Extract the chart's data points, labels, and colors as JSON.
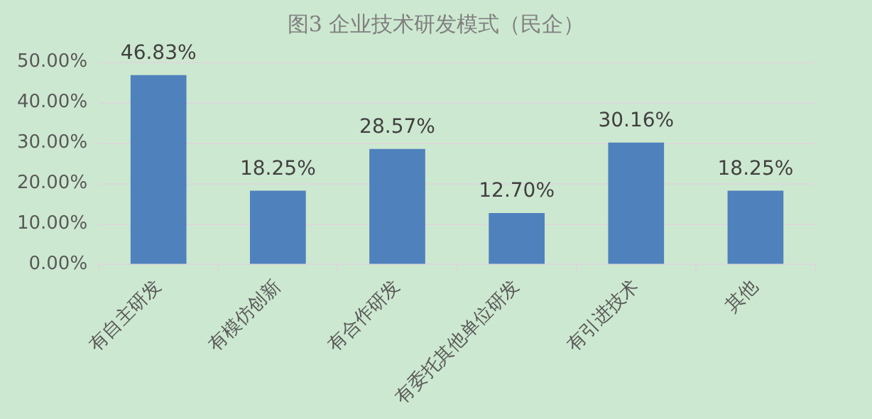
{
  "chart_data": {
    "type": "bar",
    "title": "图3 企业技术研发模式（民企）",
    "categories": [
      "有自主研发",
      "有模仿创新",
      "有合作研发",
      "有委托其他单位研发",
      "有引进技术",
      "其他"
    ],
    "values": [
      46.83,
      18.25,
      28.57,
      12.7,
      30.16,
      18.25
    ],
    "value_labels": [
      "46.83%",
      "18.25%",
      "28.57%",
      "12.70%",
      "30.16%",
      "18.25%"
    ],
    "color": "#4f81bd",
    "ylim": [
      0,
      50
    ],
    "yticks": [
      {
        "value": 0,
        "label": "0.00%"
      },
      {
        "value": 10,
        "label": "10.00%"
      },
      {
        "value": 20,
        "label": "20.00%"
      },
      {
        "value": 30,
        "label": "30.00%"
      },
      {
        "value": 40,
        "label": "40.00%"
      },
      {
        "value": 50,
        "label": "50.00%"
      }
    ],
    "grid": "y"
  }
}
